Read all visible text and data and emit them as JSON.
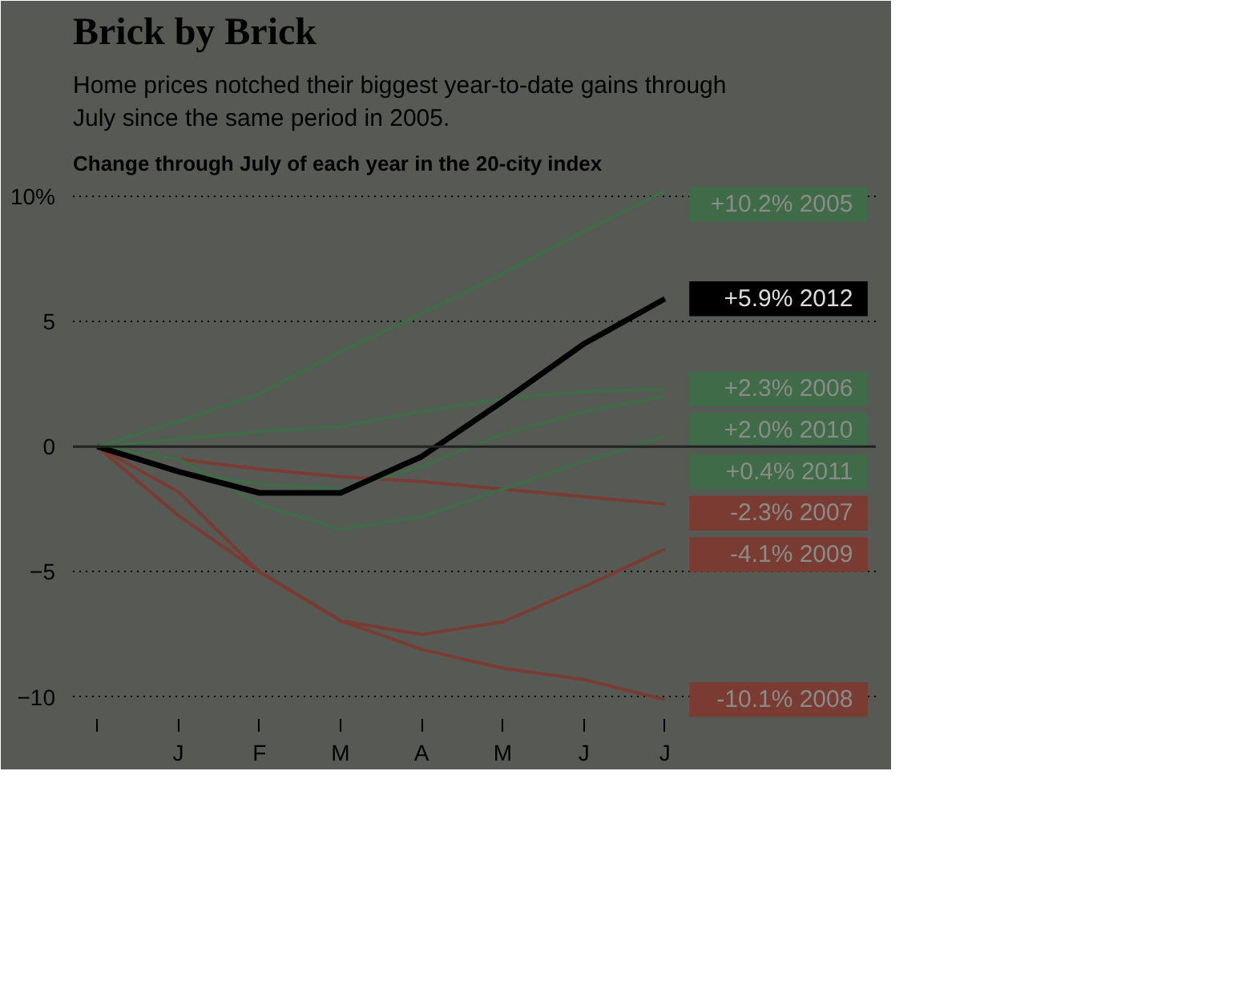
{
  "chart_data": {
    "type": "line",
    "title": "Brick by Brick",
    "subtitle": "Home prices notched their biggest year-to-date gains through July since the same period in 2005.",
    "annotations": [
      "Change through July of each year in the 20-city index"
    ],
    "categories": [
      null,
      "J",
      "F",
      "M",
      "A",
      "M",
      "J",
      "J"
    ],
    "series": [
      {
        "name": "2005",
        "color": "#3f6b48",
        "values": [
          0,
          1.0,
          2.1,
          3.8,
          5.3,
          6.9,
          8.6,
          10.2
        ],
        "value_labels": [
          null,
          null,
          null,
          null,
          null,
          null,
          null,
          "+10.2%"
        ]
      },
      {
        "name": "2012",
        "color": "#000000",
        "values": [
          0,
          -1.0,
          -1.85,
          -1.85,
          -0.4,
          1.8,
          4.1,
          5.9
        ],
        "value_labels": [
          null,
          null,
          null,
          null,
          null,
          null,
          null,
          "+5.9%"
        ]
      },
      {
        "name": "2006",
        "color": "#3f6b48",
        "values": [
          0,
          0.3,
          0.6,
          0.8,
          1.4,
          1.9,
          2.2,
          2.3
        ],
        "value_labels": [
          null,
          null,
          null,
          null,
          null,
          null,
          null,
          "+2.3%"
        ]
      },
      {
        "name": "2010",
        "color": "#3f6b48",
        "values": [
          0,
          -1.0,
          -1.5,
          -1.7,
          -0.8,
          0.5,
          1.4,
          2.0
        ],
        "value_labels": [
          null,
          null,
          null,
          null,
          null,
          null,
          null,
          "+2.0%"
        ]
      },
      {
        "name": "2011",
        "color": "#3f6b48",
        "values": [
          0,
          -0.5,
          -2.3,
          -3.3,
          -2.8,
          -1.7,
          -0.6,
          0.4
        ],
        "value_labels": [
          null,
          null,
          null,
          null,
          null,
          null,
          null,
          "+0.4%"
        ]
      },
      {
        "name": "2007",
        "color": "#7a3b32",
        "values": [
          0,
          -0.5,
          -0.9,
          -1.2,
          -1.4,
          -1.7,
          -2.0,
          -2.3
        ],
        "value_labels": [
          null,
          null,
          null,
          null,
          null,
          null,
          null,
          "-2.3%"
        ]
      },
      {
        "name": "2009",
        "color": "#7a3b32",
        "values": [
          0,
          -1.8,
          -5.0,
          -6.95,
          -7.5,
          -7.0,
          -5.6,
          -4.1
        ],
        "value_labels": [
          null,
          null,
          null,
          null,
          null,
          null,
          null,
          "-4.1%"
        ]
      },
      {
        "name": "2008",
        "color": "#7a3b32",
        "values": [
          0,
          -2.75,
          -5.0,
          -6.95,
          -8.1,
          -8.85,
          -9.3,
          -10.1
        ],
        "value_labels": [
          null,
          null,
          null,
          null,
          null,
          null,
          null,
          "-10.1%"
        ]
      }
    ],
    "ylim": [
      -11,
      10.5
    ],
    "yticks": [
      {
        "value": -10,
        "label": "−10"
      },
      {
        "value": -5,
        "label": "−5"
      },
      0,
      5,
      {
        "value": 10,
        "label": "10%"
      }
    ],
    "ref_lines": [
      {
        "axis": "y",
        "value": 0,
        "color": "#222222"
      }
    ],
    "grid": "y",
    "line_style": "solid",
    "marker": "none"
  }
}
